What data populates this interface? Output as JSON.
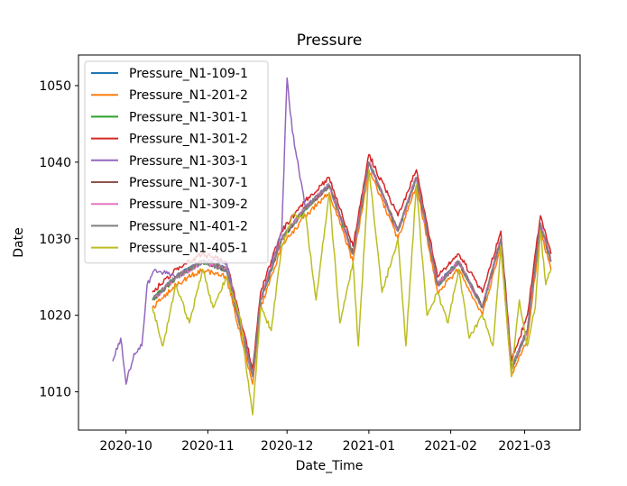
{
  "chart_data": {
    "type": "line",
    "title": "Pressure",
    "xlabel": "Date_Time",
    "ylabel": "Date",
    "xlim": [
      "2020-09-13",
      "2021-03-22"
    ],
    "ylim": [
      1005,
      1054
    ],
    "x_ticks": [
      "2020-10",
      "2020-11",
      "2020-12",
      "2021-01",
      "2021-02",
      "2021-03"
    ],
    "y_ticks": [
      1010,
      1020,
      1030,
      1040,
      1050
    ],
    "grid": false,
    "legend_position": "upper-left",
    "series": [
      {
        "name": "Pressure_N1-109-1",
        "color": "#1f77b4",
        "points": [
          [
            "2020-10-11",
            1022
          ],
          [
            "2020-10-20",
            1025
          ],
          [
            "2020-10-30",
            1027
          ],
          [
            "2020-11-08",
            1026
          ],
          [
            "2020-11-18",
            1012
          ],
          [
            "2020-11-21",
            1022
          ],
          [
            "2020-11-29",
            1030
          ],
          [
            "2020-12-08",
            1034
          ],
          [
            "2020-12-17",
            1037
          ],
          [
            "2020-12-26",
            1028
          ],
          [
            "2021-01-01",
            1040
          ],
          [
            "2021-01-12",
            1031
          ],
          [
            "2021-01-19",
            1038
          ],
          [
            "2021-01-27",
            1024
          ],
          [
            "2021-02-04",
            1027
          ],
          [
            "2021-02-13",
            1021
          ],
          [
            "2021-02-20",
            1030
          ],
          [
            "2021-02-24",
            1013
          ],
          [
            "2021-03-02",
            1018
          ],
          [
            "2021-03-07",
            1032
          ],
          [
            "2021-03-11",
            1027
          ]
        ]
      },
      {
        "name": "Pressure_N1-201-2",
        "color": "#ff7f0e",
        "points": [
          [
            "2020-10-11",
            1021
          ],
          [
            "2020-10-20",
            1024
          ],
          [
            "2020-10-30",
            1026
          ],
          [
            "2020-11-08",
            1025
          ],
          [
            "2020-11-18",
            1011
          ],
          [
            "2020-11-21",
            1021
          ],
          [
            "2020-11-29",
            1029
          ],
          [
            "2020-12-08",
            1033
          ],
          [
            "2020-12-17",
            1036
          ],
          [
            "2020-12-26",
            1027
          ],
          [
            "2021-01-01",
            1039
          ],
          [
            "2021-01-12",
            1030
          ],
          [
            "2021-01-19",
            1037
          ],
          [
            "2021-01-27",
            1023
          ],
          [
            "2021-02-04",
            1026
          ],
          [
            "2021-02-13",
            1020
          ],
          [
            "2021-02-20",
            1029
          ],
          [
            "2021-02-24",
            1012
          ],
          [
            "2021-03-02",
            1017
          ],
          [
            "2021-03-07",
            1031
          ],
          [
            "2021-03-11",
            1026
          ]
        ]
      },
      {
        "name": "Pressure_N1-301-1",
        "color": "#2ca02c",
        "points": [
          [
            "2020-10-11",
            1022
          ],
          [
            "2020-10-20",
            1025
          ],
          [
            "2020-10-30",
            1027
          ],
          [
            "2020-11-08",
            1026
          ],
          [
            "2020-11-18",
            1012
          ],
          [
            "2020-11-21",
            1022
          ],
          [
            "2020-11-29",
            1030
          ],
          [
            "2020-12-08",
            1034
          ],
          [
            "2020-12-17",
            1037
          ],
          [
            "2020-12-26",
            1028
          ],
          [
            "2021-01-01",
            1040
          ],
          [
            "2021-01-12",
            1031
          ],
          [
            "2021-01-19",
            1038
          ],
          [
            "2021-01-27",
            1024
          ],
          [
            "2021-02-04",
            1027
          ],
          [
            "2021-02-13",
            1021
          ],
          [
            "2021-02-20",
            1030
          ],
          [
            "2021-02-24",
            1013
          ],
          [
            "2021-03-02",
            1018
          ],
          [
            "2021-03-07",
            1032
          ],
          [
            "2021-03-11",
            1027
          ]
        ]
      },
      {
        "name": "Pressure_N1-301-2",
        "color": "#d62728",
        "points": [
          [
            "2020-10-11",
            1023
          ],
          [
            "2020-10-20",
            1026
          ],
          [
            "2020-10-30",
            1028
          ],
          [
            "2020-11-08",
            1027
          ],
          [
            "2020-11-18",
            1013
          ],
          [
            "2020-11-21",
            1023
          ],
          [
            "2020-11-29",
            1031
          ],
          [
            "2020-12-08",
            1035
          ],
          [
            "2020-12-17",
            1038
          ],
          [
            "2020-12-26",
            1029
          ],
          [
            "2021-01-01",
            1041
          ],
          [
            "2021-01-12",
            1033
          ],
          [
            "2021-01-19",
            1039
          ],
          [
            "2021-01-27",
            1025
          ],
          [
            "2021-02-04",
            1028
          ],
          [
            "2021-02-13",
            1023
          ],
          [
            "2021-02-20",
            1031
          ],
          [
            "2021-02-24",
            1014
          ],
          [
            "2021-03-02",
            1020
          ],
          [
            "2021-03-07",
            1033
          ],
          [
            "2021-03-11",
            1028
          ]
        ]
      },
      {
        "name": "Pressure_N1-303-1",
        "color": "#9467bd",
        "points": [
          [
            "2020-09-26",
            1014
          ],
          [
            "2020-09-29",
            1017
          ],
          [
            "2020-10-01",
            1011
          ],
          [
            "2020-10-04",
            1015
          ],
          [
            "2020-10-07",
            1016
          ],
          [
            "2020-10-09",
            1024
          ],
          [
            "2020-10-12",
            1026
          ],
          [
            "2020-10-20",
            1025
          ],
          [
            "2020-10-30",
            1027
          ],
          [
            "2020-11-08",
            1027
          ],
          [
            "2020-11-18",
            1012
          ],
          [
            "2020-11-21",
            1022
          ],
          [
            "2020-11-29",
            1031
          ],
          [
            "2020-12-01",
            1051
          ],
          [
            "2020-12-03",
            1044
          ],
          [
            "2020-12-08",
            1034
          ],
          [
            "2020-12-17",
            1037
          ],
          [
            "2020-12-26",
            1028
          ],
          [
            "2021-01-01",
            1040
          ],
          [
            "2021-01-12",
            1031
          ],
          [
            "2021-01-19",
            1038
          ],
          [
            "2021-01-27",
            1024
          ],
          [
            "2021-02-04",
            1027
          ],
          [
            "2021-02-13",
            1021
          ],
          [
            "2021-02-20",
            1030
          ],
          [
            "2021-02-24",
            1013
          ],
          [
            "2021-03-02",
            1018
          ],
          [
            "2021-03-07",
            1032
          ],
          [
            "2021-03-11",
            1027
          ]
        ]
      },
      {
        "name": "Pressure_N1-307-1",
        "color": "#8c564b",
        "points": [
          [
            "2020-10-11",
            1022
          ],
          [
            "2020-10-20",
            1025
          ],
          [
            "2020-10-30",
            1027
          ],
          [
            "2020-11-08",
            1026
          ],
          [
            "2020-11-18",
            1012
          ],
          [
            "2020-11-21",
            1022
          ],
          [
            "2020-11-29",
            1030
          ],
          [
            "2020-12-08",
            1034
          ],
          [
            "2020-12-17",
            1037
          ],
          [
            "2020-12-26",
            1028
          ],
          [
            "2021-01-01",
            1040
          ],
          [
            "2021-01-12",
            1031
          ],
          [
            "2021-01-19",
            1038
          ],
          [
            "2021-01-27",
            1024
          ],
          [
            "2021-02-04",
            1027
          ],
          [
            "2021-02-13",
            1021
          ],
          [
            "2021-02-20",
            1030
          ],
          [
            "2021-02-24",
            1013
          ],
          [
            "2021-03-02",
            1018
          ],
          [
            "2021-03-07",
            1032
          ],
          [
            "2021-03-11",
            1027
          ]
        ]
      },
      {
        "name": "Pressure_N1-309-2",
        "color": "#e377c2",
        "points": [
          [
            "2020-10-11",
            1022
          ],
          [
            "2020-10-20",
            1025
          ],
          [
            "2020-10-30",
            1027
          ],
          [
            "2020-11-08",
            1026
          ],
          [
            "2020-11-18",
            1012
          ],
          [
            "2020-11-21",
            1022
          ],
          [
            "2020-11-29",
            1030
          ],
          [
            "2020-12-08",
            1034
          ],
          [
            "2020-12-17",
            1037
          ],
          [
            "2020-12-26",
            1028
          ],
          [
            "2021-01-01",
            1040
          ],
          [
            "2021-01-12",
            1031
          ],
          [
            "2021-01-19",
            1038
          ],
          [
            "2021-01-27",
            1024
          ],
          [
            "2021-02-04",
            1027
          ],
          [
            "2021-02-13",
            1021
          ],
          [
            "2021-02-20",
            1030
          ],
          [
            "2021-02-24",
            1013
          ],
          [
            "2021-03-02",
            1018
          ],
          [
            "2021-03-07",
            1032
          ],
          [
            "2021-03-11",
            1027
          ]
        ]
      },
      {
        "name": "Pressure_N1-401-2",
        "color": "#7f7f7f",
        "points": [
          [
            "2020-10-11",
            1022
          ],
          [
            "2020-10-20",
            1025
          ],
          [
            "2020-10-30",
            1027
          ],
          [
            "2020-11-08",
            1026
          ],
          [
            "2020-11-18",
            1012
          ],
          [
            "2020-11-21",
            1022
          ],
          [
            "2020-11-29",
            1030
          ],
          [
            "2020-12-08",
            1034
          ],
          [
            "2020-12-17",
            1037
          ],
          [
            "2020-12-26",
            1028
          ],
          [
            "2021-01-01",
            1040
          ],
          [
            "2021-01-12",
            1031
          ],
          [
            "2021-01-19",
            1038
          ],
          [
            "2021-01-27",
            1024
          ],
          [
            "2021-02-04",
            1027
          ],
          [
            "2021-02-13",
            1021
          ],
          [
            "2021-02-20",
            1030
          ],
          [
            "2021-02-24",
            1013
          ],
          [
            "2021-03-02",
            1018
          ],
          [
            "2021-03-07",
            1032
          ],
          [
            "2021-03-11",
            1027
          ]
        ]
      },
      {
        "name": "Pressure_N1-405-1",
        "color": "#bcbd22",
        "points": [
          [
            "2020-10-11",
            1021
          ],
          [
            "2020-10-15",
            1016
          ],
          [
            "2020-10-20",
            1024
          ],
          [
            "2020-10-25",
            1019
          ],
          [
            "2020-10-30",
            1026
          ],
          [
            "2020-11-03",
            1021
          ],
          [
            "2020-11-08",
            1025
          ],
          [
            "2020-11-13",
            1020
          ],
          [
            "2020-11-18",
            1007
          ],
          [
            "2020-11-21",
            1021
          ],
          [
            "2020-11-25",
            1018
          ],
          [
            "2020-11-29",
            1029
          ],
          [
            "2020-12-03",
            1033
          ],
          [
            "2020-12-08",
            1033
          ],
          [
            "2020-12-12",
            1022
          ],
          [
            "2020-12-17",
            1036
          ],
          [
            "2020-12-21",
            1019
          ],
          [
            "2020-12-26",
            1027
          ],
          [
            "2020-12-28",
            1016
          ],
          [
            "2021-01-01",
            1039
          ],
          [
            "2021-01-06",
            1023
          ],
          [
            "2021-01-12",
            1030
          ],
          [
            "2021-01-15",
            1016
          ],
          [
            "2021-01-19",
            1037
          ],
          [
            "2021-01-23",
            1020
          ],
          [
            "2021-01-27",
            1023
          ],
          [
            "2021-01-31",
            1019
          ],
          [
            "2021-02-04",
            1026
          ],
          [
            "2021-02-08",
            1017
          ],
          [
            "2021-02-13",
            1020
          ],
          [
            "2021-02-17",
            1016
          ],
          [
            "2021-02-20",
            1029
          ],
          [
            "2021-02-24",
            1012
          ],
          [
            "2021-02-27",
            1022
          ],
          [
            "2021-03-02",
            1016
          ],
          [
            "2021-03-05",
            1021
          ],
          [
            "2021-03-07",
            1031
          ],
          [
            "2021-03-09",
            1024
          ],
          [
            "2021-03-11",
            1026
          ]
        ]
      }
    ]
  }
}
